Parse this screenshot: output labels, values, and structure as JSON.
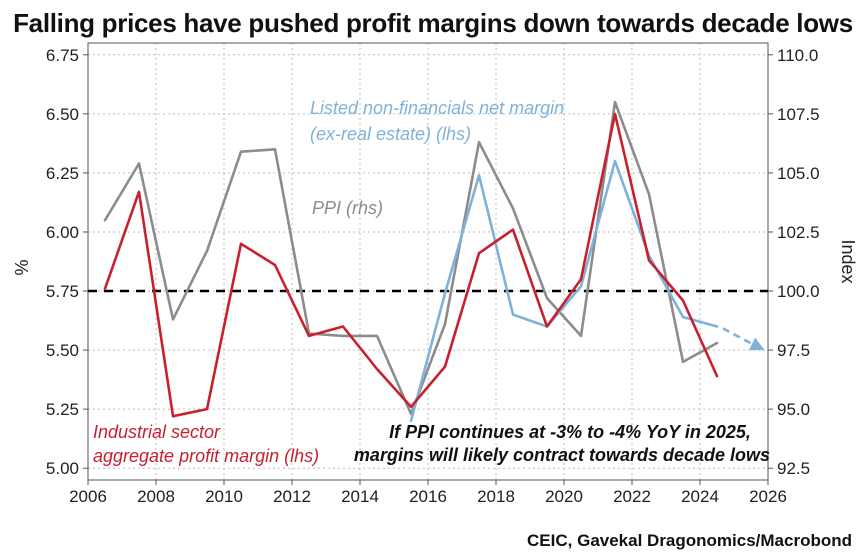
{
  "title": "Falling prices have pushed profit margins down towards decade lows",
  "source": "CEIC, Gavekal Dragonomics/Macrobond",
  "chart_data": {
    "type": "line",
    "xlim": [
      2006,
      2026
    ],
    "x_ticks": [
      "2006",
      "2008",
      "2010",
      "2012",
      "2014",
      "2016",
      "2018",
      "2020",
      "2022",
      "2024",
      "2026"
    ],
    "left_axis": {
      "label": "%",
      "ylim": [
        4.95,
        6.8
      ],
      "ticks": [
        "5.00",
        "5.25",
        "5.50",
        "5.75",
        "6.00",
        "6.25",
        "6.50",
        "6.75"
      ]
    },
    "right_axis": {
      "label": "Index",
      "ylim": [
        92.0,
        110.5
      ],
      "ticks": [
        "92.5",
        "95.0",
        "97.5",
        "100.0",
        "102.5",
        "105.0",
        "107.5",
        "110.0"
      ]
    },
    "reference_line": {
      "axis": "right",
      "value": 100.0,
      "style": "dashed",
      "color": "#000000"
    },
    "series": [
      {
        "name": "Industrial sector aggregate profit margin (lhs)",
        "axis": "left",
        "color": "#c8202f",
        "points": [
          [
            2006.5,
            5.76
          ],
          [
            2007.5,
            6.17
          ],
          [
            2008.5,
            5.22
          ],
          [
            2009.5,
            5.25
          ],
          [
            2010.5,
            5.95
          ],
          [
            2011.5,
            5.86
          ],
          [
            2012.5,
            5.56
          ],
          [
            2013.5,
            5.6
          ],
          [
            2014.5,
            5.42
          ],
          [
            2015.5,
            5.26
          ],
          [
            2016.5,
            5.43
          ],
          [
            2017.5,
            5.91
          ],
          [
            2018.5,
            6.01
          ],
          [
            2019.5,
            5.6
          ],
          [
            2020.5,
            5.8
          ],
          [
            2021.5,
            6.5
          ],
          [
            2022.5,
            5.88
          ],
          [
            2023.5,
            5.71
          ],
          [
            2024.5,
            5.39
          ]
        ]
      },
      {
        "name": "PPI (rhs)",
        "axis": "right",
        "color": "#8c8c8c",
        "points": [
          [
            2006.5,
            103.0
          ],
          [
            2007.5,
            105.4
          ],
          [
            2008.5,
            98.8
          ],
          [
            2009.5,
            101.7
          ],
          [
            2010.5,
            105.9
          ],
          [
            2011.5,
            106.0
          ],
          [
            2012.5,
            98.2
          ],
          [
            2013.5,
            98.1
          ],
          [
            2014.5,
            98.1
          ],
          [
            2015.5,
            94.8
          ],
          [
            2016.5,
            98.6
          ],
          [
            2017.5,
            106.3
          ],
          [
            2018.5,
            103.5
          ],
          [
            2019.5,
            99.7
          ],
          [
            2020.5,
            98.1
          ],
          [
            2021.5,
            108.0
          ],
          [
            2022.5,
            104.1
          ],
          [
            2023.5,
            97.0
          ],
          [
            2024.5,
            97.8
          ]
        ]
      },
      {
        "name": "Listed non-financials net margin (ex-real estate) (lhs)",
        "axis": "left",
        "color": "#7fb2d9",
        "points": [
          [
            2015.5,
            5.2
          ],
          [
            2016.5,
            5.74
          ],
          [
            2017.5,
            6.24
          ],
          [
            2018.5,
            5.65
          ],
          [
            2019.5,
            5.6
          ],
          [
            2020.5,
            5.77
          ],
          [
            2021.5,
            6.3
          ],
          [
            2022.5,
            5.9
          ],
          [
            2023.5,
            5.64
          ],
          [
            2024.5,
            5.6
          ]
        ]
      }
    ],
    "forecast_arrow": {
      "axis": "left",
      "color": "#7fb2d9",
      "style": "dashed",
      "from": [
        2024.5,
        5.6
      ],
      "to": [
        2025.9,
        5.5
      ]
    },
    "annotations": [
      {
        "key": "listed_line1",
        "text": "Listed non-financials net margin",
        "color": "#7fb2d9"
      },
      {
        "key": "listed_line2",
        "text": "(ex-real estate)  (lhs)",
        "color": "#7fb2d9"
      },
      {
        "key": "ppi",
        "text": "PPI (rhs)",
        "color": "#8c8c8c"
      },
      {
        "key": "ind_line1",
        "text": "Industrial sector",
        "color": "#c8202f"
      },
      {
        "key": "ind_line2",
        "text": "aggregate profit margin (lhs)",
        "color": "#c8202f"
      },
      {
        "key": "note_line1",
        "text": "If PPI continues at -3% to -4% YoY in 2025,",
        "color": "#111111"
      },
      {
        "key": "note_line2",
        "text": "margins will likely contract towards decade lows",
        "color": "#111111"
      }
    ]
  }
}
